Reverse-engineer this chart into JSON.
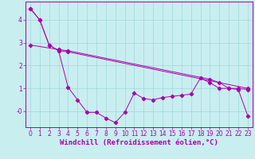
{
  "bg_color": "#c8eef0",
  "line_color": "#aa00aa",
  "grid_color": "#a0d8d8",
  "xlabel": "Windchill (Refroidissement éolien,°C)",
  "xlabel_fontsize": 6.5,
  "tick_fontsize": 5.5,
  "ylim": [
    -0.7,
    4.8
  ],
  "xlim": [
    -0.5,
    23.5
  ],
  "yticks": [
    0,
    1,
    2,
    3,
    4
  ],
  "ytick_labels": [
    "-0",
    "1",
    "2",
    "3",
    "4"
  ],
  "xticks": [
    0,
    1,
    2,
    3,
    4,
    5,
    6,
    7,
    8,
    9,
    10,
    11,
    12,
    13,
    14,
    15,
    16,
    17,
    18,
    19,
    20,
    21,
    22,
    23
  ],
  "line1_x": [
    0,
    1,
    2,
    3,
    4,
    5,
    6,
    7,
    8,
    9,
    10,
    11,
    12,
    13,
    14,
    15,
    16,
    17,
    18,
    19,
    20,
    21,
    22,
    23
  ],
  "line1_y": [
    4.5,
    4.0,
    2.9,
    2.65,
    1.05,
    0.5,
    -0.05,
    -0.05,
    -0.3,
    -0.5,
    -0.05,
    0.8,
    0.55,
    0.5,
    0.6,
    0.65,
    0.7,
    0.75,
    1.45,
    1.25,
    1.0,
    1.0,
    0.95,
    -0.2
  ],
  "line2_x": [
    0,
    1,
    2,
    3,
    4,
    23
  ],
  "line2_y": [
    4.5,
    4.0,
    2.9,
    2.65,
    2.6,
    1.0
  ],
  "line3_x": [
    0,
    3,
    4,
    19,
    20,
    21,
    22,
    23
  ],
  "line3_y": [
    2.9,
    2.7,
    2.65,
    1.4,
    1.25,
    1.0,
    1.0,
    0.95
  ]
}
